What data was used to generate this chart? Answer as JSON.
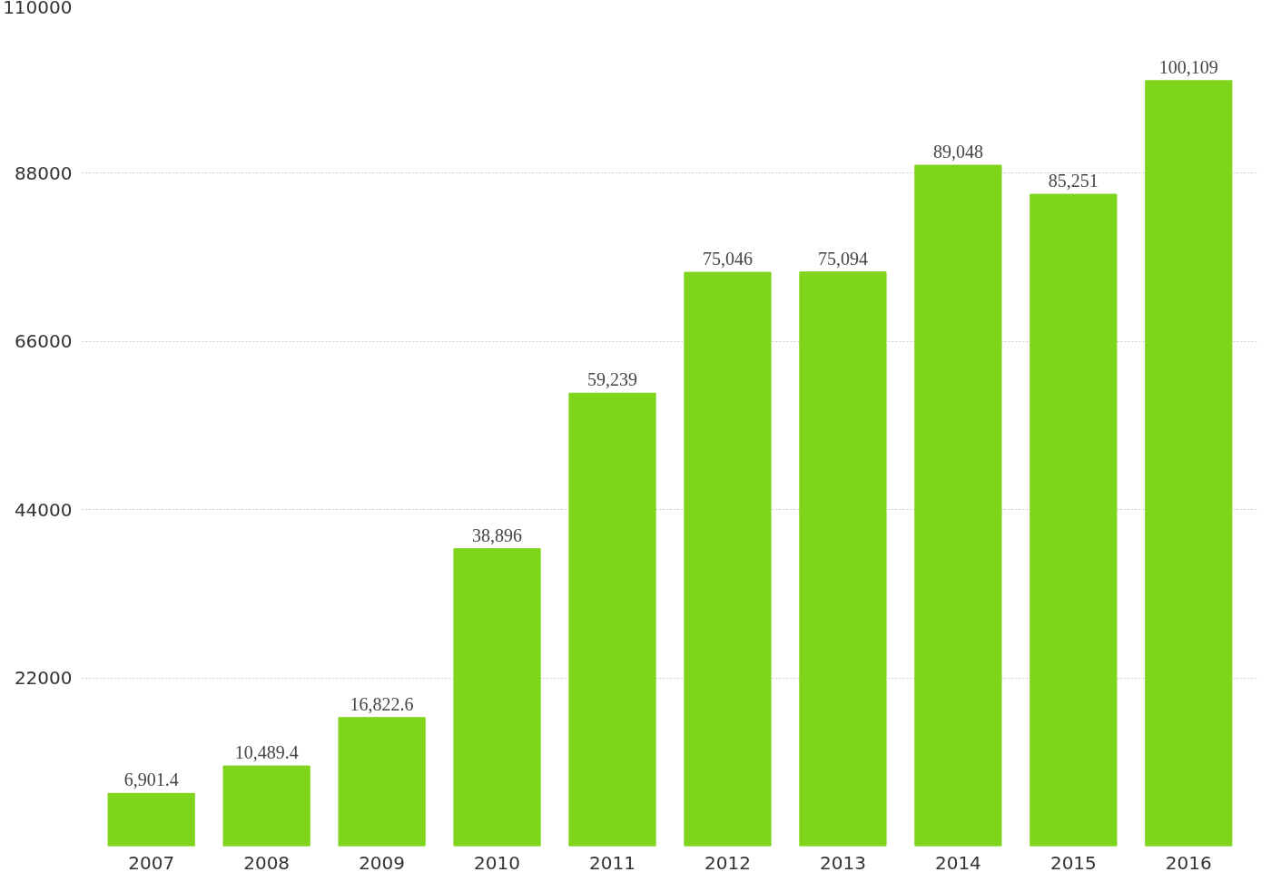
{
  "chart_data": {
    "type": "bar",
    "categories": [
      "2007",
      "2008",
      "2009",
      "2010",
      "2011",
      "2012",
      "2013",
      "2014",
      "2015",
      "2016"
    ],
    "values": [
      6901.4,
      10489.4,
      16822.6,
      38896,
      59239,
      75046,
      75094,
      89048,
      85251,
      100109
    ],
    "value_labels": [
      "6,901.4",
      "10,489.4",
      "16,822.6",
      "38,896",
      "59,239",
      "75,046",
      "75,094",
      "89,048",
      "85,251",
      "100,109"
    ],
    "color": "#7fd41c",
    "ylim": [
      0,
      110000
    ],
    "yticks": [
      22000,
      44000,
      66000,
      88000,
      110000
    ],
    "grid": "y"
  }
}
